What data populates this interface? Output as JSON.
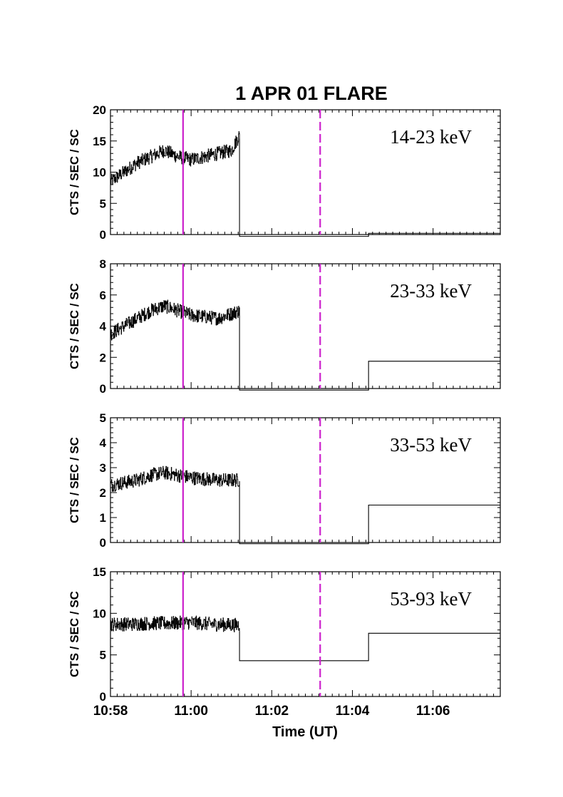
{
  "chart_data": {
    "type": "line",
    "title": "1 APR 01 FLARE",
    "xlabel": "Time (UT)",
    "ylabel": "CTS / SEC / SC",
    "xlim": [
      "10:58",
      "11:07:40"
    ],
    "x_tick_labels": [
      "10:58",
      "11:00",
      "11:02",
      "11:04",
      "11:06"
    ],
    "x_ticks": [
      "10:58",
      "11:00",
      "11:02",
      "11:04",
      "11:06"
    ],
    "vertical_markers": [
      {
        "time": "10:59:48",
        "style": "solid",
        "color": "#cc22cc"
      },
      {
        "time": "11:03:12",
        "style": "dashed",
        "color": "#cc22cc"
      }
    ],
    "panels": [
      {
        "band_label": "14-23 keV",
        "ylim": [
          0,
          20
        ],
        "y_ticks": [
          0,
          5,
          10,
          15,
          20
        ],
        "y_tick_labels": [
          "0",
          "5",
          "10",
          "15",
          "20"
        ],
        "fine_series": [
          {
            "time": "10:58:00",
            "value": 8.5
          },
          {
            "time": "10:58:20",
            "value": 10.0
          },
          {
            "time": "10:58:40",
            "value": 11.5
          },
          {
            "time": "10:59:00",
            "value": 12.5
          },
          {
            "time": "10:59:20",
            "value": 13.5
          },
          {
            "time": "10:59:40",
            "value": 12.5
          },
          {
            "time": "11:00:00",
            "value": 12.0
          },
          {
            "time": "11:00:20",
            "value": 12.5
          },
          {
            "time": "11:00:40",
            "value": 13.0
          },
          {
            "time": "11:01:00",
            "value": 13.5
          },
          {
            "time": "11:01:12",
            "value": 16.0
          }
        ],
        "coarse_series": [
          {
            "start": "11:01:12",
            "end": "11:04:24",
            "value": -0.3
          },
          {
            "start": "11:04:24",
            "end": "11:07:40",
            "value": 0.2
          }
        ]
      },
      {
        "band_label": "23-33 keV",
        "ylim": [
          0,
          8
        ],
        "y_ticks": [
          0,
          2,
          4,
          6,
          8
        ],
        "y_tick_labels": [
          "0",
          "2",
          "4",
          "6",
          "8"
        ],
        "fine_series": [
          {
            "time": "10:58:00",
            "value": 3.5
          },
          {
            "time": "10:58:20",
            "value": 4.0
          },
          {
            "time": "10:58:40",
            "value": 4.5
          },
          {
            "time": "10:59:00",
            "value": 5.0
          },
          {
            "time": "10:59:20",
            "value": 5.3
          },
          {
            "time": "10:59:40",
            "value": 5.0
          },
          {
            "time": "11:00:00",
            "value": 4.7
          },
          {
            "time": "11:00:20",
            "value": 4.6
          },
          {
            "time": "11:00:40",
            "value": 4.5
          },
          {
            "time": "11:01:00",
            "value": 4.8
          },
          {
            "time": "11:01:12",
            "value": 5.0
          }
        ],
        "coarse_series": [
          {
            "start": "11:01:12",
            "end": "11:04:24",
            "value": -0.1
          },
          {
            "start": "11:04:24",
            "end": "11:07:40",
            "value": 1.75
          }
        ]
      },
      {
        "band_label": "33-53 keV",
        "ylim": [
          0,
          5
        ],
        "y_ticks": [
          0,
          1,
          2,
          3,
          4,
          5
        ],
        "y_tick_labels": [
          "0",
          "1",
          "2",
          "3",
          "4",
          "5"
        ],
        "fine_series": [
          {
            "time": "10:58:00",
            "value": 2.3
          },
          {
            "time": "10:58:20",
            "value": 2.4
          },
          {
            "time": "10:58:40",
            "value": 2.5
          },
          {
            "time": "10:59:00",
            "value": 2.7
          },
          {
            "time": "10:59:20",
            "value": 2.8
          },
          {
            "time": "10:59:40",
            "value": 2.7
          },
          {
            "time": "11:00:00",
            "value": 2.6
          },
          {
            "time": "11:00:20",
            "value": 2.55
          },
          {
            "time": "11:00:40",
            "value": 2.5
          },
          {
            "time": "11:01:00",
            "value": 2.5
          },
          {
            "time": "11:01:12",
            "value": 2.5
          }
        ],
        "coarse_series": [
          {
            "start": "11:01:12",
            "end": "11:04:24",
            "value": -0.05
          },
          {
            "start": "11:04:24",
            "end": "11:07:40",
            "value": 1.5
          }
        ]
      },
      {
        "band_label": "53-93 keV",
        "ylim": [
          0,
          15
        ],
        "y_ticks": [
          0,
          5,
          10,
          15
        ],
        "y_tick_labels": [
          "0",
          "5",
          "10",
          "15"
        ],
        "fine_series": [
          {
            "time": "10:58:00",
            "value": 8.7
          },
          {
            "time": "10:58:30",
            "value": 8.7
          },
          {
            "time": "10:59:00",
            "value": 8.8
          },
          {
            "time": "10:59:30",
            "value": 8.8
          },
          {
            "time": "11:00:00",
            "value": 8.9
          },
          {
            "time": "11:00:30",
            "value": 8.7
          },
          {
            "time": "11:01:00",
            "value": 8.6
          },
          {
            "time": "11:01:12",
            "value": 8.6
          }
        ],
        "coarse_series": [
          {
            "start": "11:01:12",
            "end": "11:04:24",
            "value": 4.3
          },
          {
            "start": "11:04:24",
            "end": "11:07:40",
            "value": 7.6
          }
        ]
      }
    ]
  }
}
